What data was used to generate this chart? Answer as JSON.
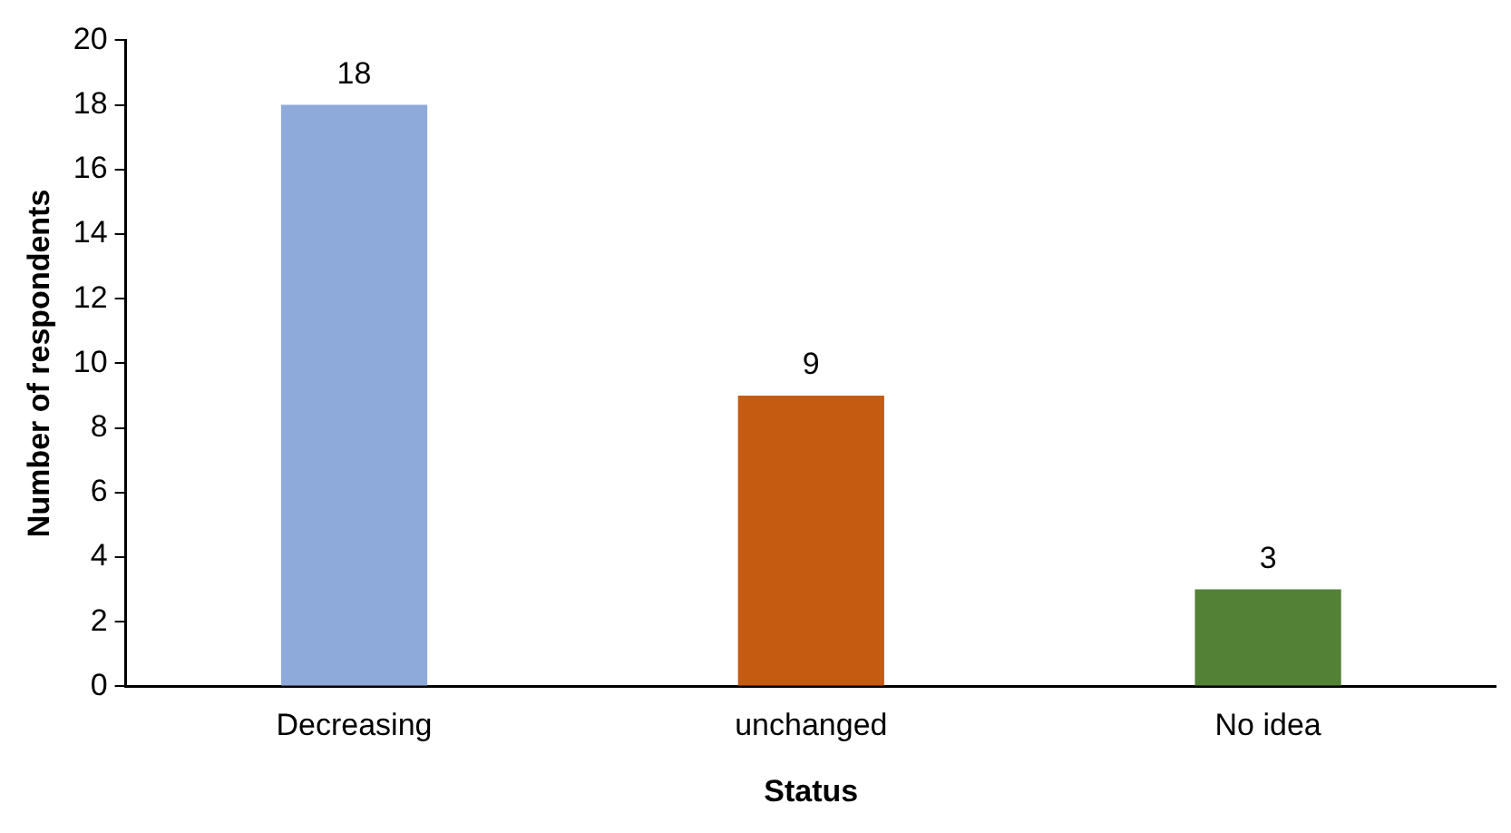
{
  "chart_data": {
    "type": "bar",
    "xlabel": "Status",
    "ylabel": "Number of respondents",
    "categories": [
      "Decreasing",
      "unchanged",
      "No idea"
    ],
    "values": [
      18,
      9,
      3
    ],
    "colors": [
      "#8eaadb",
      "#c55a11",
      "#538135"
    ],
    "ylim": [
      0,
      20
    ],
    "yticks": [
      0,
      2,
      4,
      6,
      8,
      10,
      12,
      14,
      16,
      18,
      20
    ],
    "grid": false,
    "legend": false,
    "data_labels": true
  }
}
